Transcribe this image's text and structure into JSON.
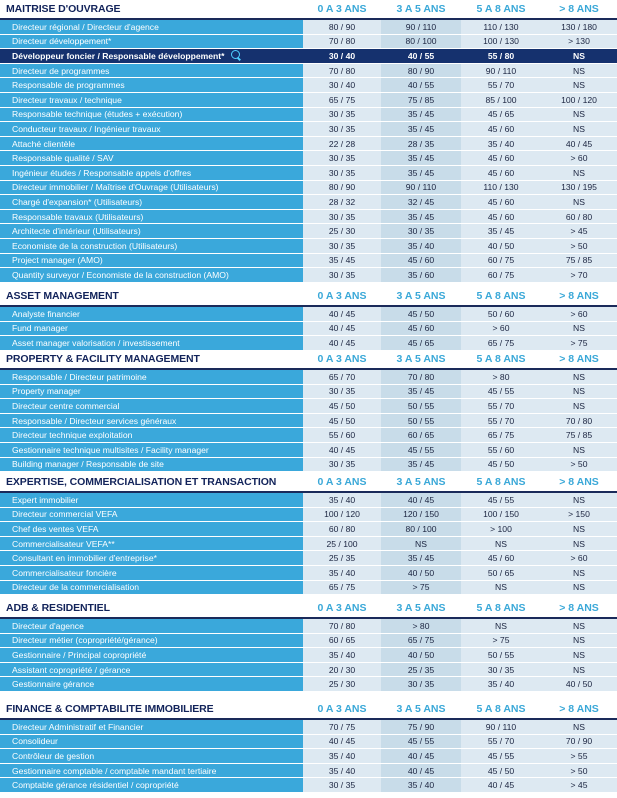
{
  "columns": [
    "0 A 3 ANS",
    "3 A 5 ANS",
    "5 A 8 ANS",
    "> 8 ANS"
  ],
  "sections": [
    {
      "title": "MAITRISE D'OUVRAGE",
      "rows": [
        {
          "label": "Directeur régional / Directeur d'agence",
          "v": [
            "80 / 90",
            "90 / 110",
            "110 / 130",
            "130 / 180"
          ]
        },
        {
          "label": "Directeur développement*",
          "v": [
            "70 / 80",
            "80 / 100",
            "100 / 130",
            "> 130"
          ]
        },
        {
          "label": "Développeur foncier / Responsable développement*",
          "v": [
            "30 / 40",
            "40 / 55",
            "55 / 80",
            "NS"
          ],
          "highlight": true
        },
        {
          "label": "Directeur de programmes",
          "v": [
            "70 / 80",
            "80 / 90",
            "90 / 110",
            "NS"
          ]
        },
        {
          "label": "Responsable de programmes",
          "v": [
            "30 / 40",
            "40 / 55",
            "55 / 70",
            "NS"
          ]
        },
        {
          "label": "Directeur travaux / technique",
          "v": [
            "65 / 75",
            "75 / 85",
            "85 / 100",
            "100 / 120"
          ]
        },
        {
          "label": "Responsable technique (études + exécution)",
          "v": [
            "30 / 35",
            "35 / 45",
            "45 / 65",
            "NS"
          ]
        },
        {
          "label": "Conducteur travaux / Ingénieur travaux",
          "v": [
            "30 / 35",
            "35 / 45",
            "45 / 60",
            "NS"
          ]
        },
        {
          "label": "Attaché clientèle",
          "v": [
            "22 / 28",
            "28 / 35",
            "35 / 40",
            "40 / 45"
          ]
        },
        {
          "label": "Responsable qualité / SAV",
          "v": [
            "30 / 35",
            "35 / 45",
            "45 / 60",
            "> 60"
          ]
        },
        {
          "label": "Ingénieur études / Responsable appels d'offres",
          "v": [
            "30 / 35",
            "35 / 45",
            "45 / 60",
            "NS"
          ]
        },
        {
          "label": "Directeur immobilier / Maîtrise d'Ouvrage (Utilisateurs)",
          "v": [
            "80 / 90",
            "90 / 110",
            "110 / 130",
            "130 / 195"
          ]
        },
        {
          "label": "Chargé d'expansion* (Utilisateurs)",
          "v": [
            "28 / 32",
            "32 / 45",
            "45 / 60",
            "NS"
          ]
        },
        {
          "label": "Responsable travaux (Utilisateurs)",
          "v": [
            "30 / 35",
            "35 / 45",
            "45 / 60",
            "60 / 80"
          ]
        },
        {
          "label": "Architecte d'intérieur (Utilisateurs)",
          "v": [
            "25 / 30",
            "30 / 35",
            "35 / 45",
            "> 45"
          ]
        },
        {
          "label": "Economiste de la construction (Utilisateurs)",
          "v": [
            "30 / 35",
            "35 / 40",
            "40 / 50",
            "> 50"
          ]
        },
        {
          "label": "Project manager (AMO)",
          "v": [
            "35 / 45",
            "45 / 60",
            "60 / 75",
            "75 / 85"
          ]
        },
        {
          "label": "Quantity surveyor / Economiste de la construction (AMO)",
          "v": [
            "30 / 35",
            "35 / 60",
            "60 / 75",
            "> 70"
          ]
        }
      ]
    },
    {
      "title": "ASSET MANAGEMENT",
      "rows": [
        {
          "label": "Analyste financier",
          "v": [
            "40 / 45",
            "45 / 50",
            "50 / 60",
            "> 60"
          ]
        },
        {
          "label": "Fund manager",
          "v": [
            "40 / 45",
            "45 / 60",
            "> 60",
            "NS"
          ]
        },
        {
          "label": "Asset manager valorisation / investissement",
          "v": [
            "40 / 45",
            "45 / 65",
            "65 / 75",
            "> 75"
          ]
        }
      ]
    },
    {
      "title": "PROPERTY & FACILITY MANAGEMENT",
      "rows": [
        {
          "label": "Responsable / Directeur patrimoine",
          "v": [
            "65 / 70",
            "70 / 80",
            "> 80",
            "NS"
          ]
        },
        {
          "label": "Property manager",
          "v": [
            "30 / 35",
            "35 / 45",
            "45 / 55",
            "NS"
          ]
        },
        {
          "label": "Directeur centre commercial",
          "v": [
            "45 / 50",
            "50 / 55",
            "55 / 70",
            "NS"
          ]
        },
        {
          "label": "Responsable / Directeur services généraux",
          "v": [
            "45 / 50",
            "50 / 55",
            "55 / 70",
            "70 / 80"
          ]
        },
        {
          "label": "Directeur technique exploitation",
          "v": [
            "55 / 60",
            "60 / 65",
            "65 / 75",
            "75 / 85"
          ]
        },
        {
          "label": "Gestionnaire technique multisites / Facility manager",
          "v": [
            "40 / 45",
            "45 / 55",
            "55 / 60",
            "NS"
          ]
        },
        {
          "label": "Building manager / Responsable de site",
          "v": [
            "30 / 35",
            "35 / 45",
            "45 / 50",
            "> 50"
          ]
        }
      ]
    },
    {
      "title": "EXPERTISE, COMMERCIALISATION ET TRANSACTION",
      "rows": [
        {
          "label": "Expert immobilier",
          "v": [
            "35 / 40",
            "40 / 45",
            "45 / 55",
            "NS"
          ]
        },
        {
          "label": "Directeur commercial VEFA",
          "v": [
            "100 / 120",
            "120 / 150",
            "100 / 150",
            "> 150"
          ]
        },
        {
          "label": "Chef des ventes VEFA",
          "v": [
            "60 / 80",
            "80 / 100",
            "> 100",
            "NS"
          ]
        },
        {
          "label": "Commercialisateur VEFA**",
          "v": [
            "25 / 100",
            "NS",
            "NS",
            "NS"
          ]
        },
        {
          "label": "Consultant en immobilier d'entreprise*",
          "v": [
            "25 / 35",
            "35 / 45",
            "45 / 60",
            "> 60"
          ]
        },
        {
          "label": "Commercialisateur foncière",
          "v": [
            "35 / 40",
            "40 / 50",
            "50 / 65",
            "NS"
          ]
        },
        {
          "label": "Directeur de la commercialisation",
          "v": [
            "65 / 75",
            "> 75",
            "NS",
            "NS"
          ]
        }
      ]
    },
    {
      "title": "ADB & RESIDENTIEL",
      "rows": [
        {
          "label": "Directeur d'agence",
          "v": [
            "70 / 80",
            "> 80",
            "NS",
            "NS"
          ]
        },
        {
          "label": "Directeur métier (copropriété/gérance)",
          "v": [
            "60 / 65",
            "65 / 75",
            "> 75",
            "NS"
          ]
        },
        {
          "label": "Gestionnaire / Principal copropriété",
          "v": [
            "35 / 40",
            "40 / 50",
            "50 / 55",
            "NS"
          ]
        },
        {
          "label": "Assistant copropriété / gérance",
          "v": [
            "20 / 30",
            "25 / 35",
            "30 / 35",
            "NS"
          ]
        },
        {
          "label": "Gestionnaire gérance",
          "v": [
            "25 / 30",
            "30 / 35",
            "35 / 40",
            "40 / 50"
          ]
        }
      ]
    },
    {
      "title": "FINANCE & COMPTABILITE IMMOBILIERE",
      "rows": [
        {
          "label": "Directeur Administratif et Financier",
          "v": [
            "70 / 75",
            "75 / 90",
            "90 / 110",
            "NS"
          ]
        },
        {
          "label": "Consolideur",
          "v": [
            "40 / 45",
            "45 / 55",
            "55 / 70",
            "70 / 90"
          ]
        },
        {
          "label": "Contrôleur de gestion",
          "v": [
            "35 / 40",
            "40 / 45",
            "45 / 55",
            "> 55"
          ]
        },
        {
          "label": "Gestionnaire comptable / comptable mandant tertiaire",
          "v": [
            "35 / 40",
            "40 / 45",
            "45 / 50",
            "> 50"
          ]
        },
        {
          "label": "Comptable gérance résidentiel / copropriété",
          "v": [
            "30 / 35",
            "35 / 40",
            "40 / 45",
            "> 45"
          ]
        }
      ]
    }
  ]
}
